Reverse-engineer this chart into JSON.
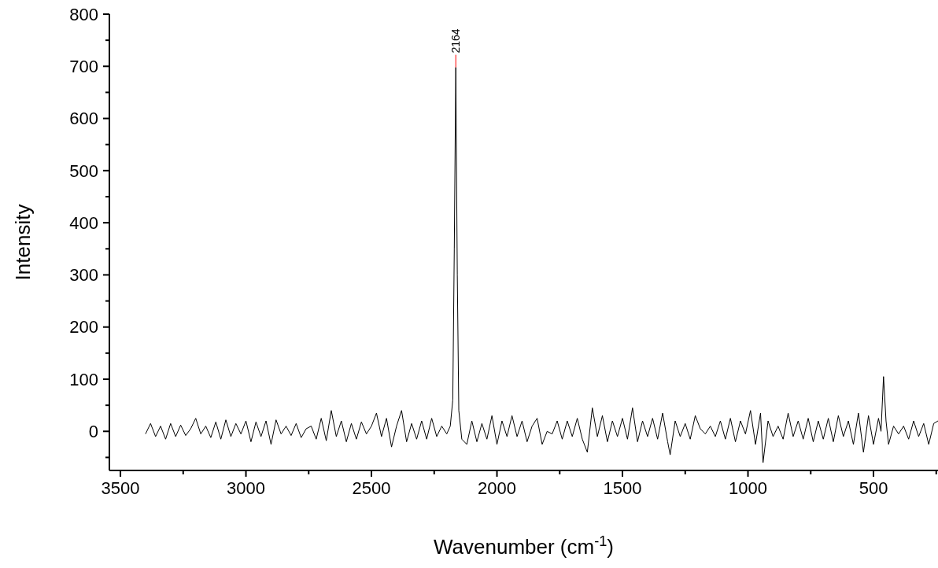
{
  "chart_data": {
    "type": "line",
    "xlabel": "Wavenumber (cm$^{-1}$)",
    "ylabel": "Intensity",
    "x": [
      3400,
      3380,
      3360,
      3340,
      3320,
      3300,
      3280,
      3260,
      3240,
      3220,
      3200,
      3180,
      3160,
      3140,
      3120,
      3100,
      3080,
      3060,
      3040,
      3020,
      3000,
      2980,
      2960,
      2940,
      2920,
      2900,
      2880,
      2860,
      2840,
      2820,
      2800,
      2780,
      2760,
      2740,
      2720,
      2700,
      2680,
      2660,
      2640,
      2620,
      2600,
      2580,
      2560,
      2540,
      2520,
      2500,
      2480,
      2460,
      2440,
      2420,
      2400,
      2380,
      2360,
      2340,
      2320,
      2300,
      2280,
      2260,
      2240,
      2220,
      2200,
      2186,
      2176,
      2170,
      2164,
      2158,
      2152,
      2140,
      2120,
      2100,
      2080,
      2060,
      2040,
      2020,
      2000,
      1980,
      1960,
      1940,
      1920,
      1900,
      1880,
      1860,
      1840,
      1820,
      1800,
      1780,
      1760,
      1740,
      1720,
      1700,
      1680,
      1660,
      1640,
      1620,
      1600,
      1580,
      1560,
      1540,
      1520,
      1500,
      1480,
      1460,
      1440,
      1420,
      1400,
      1380,
      1360,
      1340,
      1320,
      1310,
      1290,
      1270,
      1250,
      1230,
      1210,
      1190,
      1170,
      1150,
      1130,
      1110,
      1090,
      1070,
      1050,
      1030,
      1010,
      990,
      970,
      950,
      940,
      920,
      900,
      880,
      860,
      840,
      820,
      800,
      780,
      760,
      740,
      720,
      700,
      680,
      660,
      640,
      620,
      600,
      580,
      560,
      540,
      520,
      500,
      480,
      470,
      460,
      450,
      440,
      420,
      400,
      380,
      360,
      340,
      320,
      300,
      280,
      260,
      243
    ],
    "series": [
      {
        "color": "#000000",
        "values": [
          -5,
          15,
          -10,
          10,
          -15,
          15,
          -10,
          12,
          -8,
          5,
          25,
          -5,
          10,
          -12,
          18,
          -15,
          22,
          -10,
          15,
          -5,
          20,
          -20,
          18,
          -10,
          20,
          -25,
          22,
          -5,
          10,
          -8,
          15,
          -12,
          5,
          10,
          -15,
          25,
          -18,
          40,
          -10,
          20,
          -20,
          15,
          -15,
          18,
          -5,
          10,
          35,
          -10,
          25,
          -30,
          10,
          40,
          -20,
          15,
          -15,
          20,
          -15,
          25,
          -10,
          10,
          -5,
          10,
          60,
          350,
          698,
          300,
          40,
          -15,
          -25,
          20,
          -20,
          15,
          -15,
          30,
          -25,
          20,
          -10,
          30,
          -10,
          20,
          -20,
          10,
          25,
          -25,
          0,
          -5,
          20,
          -15,
          20,
          -10,
          25,
          -15,
          -40,
          45,
          -10,
          30,
          -20,
          20,
          -10,
          25,
          -15,
          45,
          -20,
          20,
          -10,
          25,
          -15,
          35,
          -20,
          -45,
          20,
          -10,
          15,
          -15,
          30,
          5,
          -5,
          10,
          -10,
          20,
          -15,
          25,
          -20,
          20,
          -5,
          40,
          -25,
          35,
          -60,
          20,
          -10,
          10,
          -15,
          35,
          -10,
          20,
          -15,
          25,
          -20,
          20,
          -15,
          25,
          -20,
          30,
          -10,
          20,
          -25,
          35,
          -40,
          30,
          -25,
          25,
          0,
          105,
          20,
          -25,
          10,
          -5,
          10,
          -15,
          20,
          -10,
          15,
          -25,
          15,
          20
        ]
      }
    ],
    "xlim": [
      3544,
      243
    ],
    "ylim": [
      -75,
      800
    ],
    "xticks": [
      3500,
      {
        "value": 3250,
        "label": null
      },
      3000,
      {
        "value": 2750,
        "label": null
      },
      2500,
      {
        "value": 2250,
        "label": null
      },
      2000,
      {
        "value": 1750,
        "label": null
      },
      1500,
      {
        "value": 1250,
        "label": null
      },
      1000,
      {
        "value": 750,
        "label": null
      },
      500,
      {
        "value": 250,
        "label": null
      }
    ],
    "yticks": [
      {
        "value": -50,
        "label": null
      },
      0,
      {
        "value": 50,
        "label": null
      },
      100,
      {
        "value": 150,
        "label": null
      },
      200,
      {
        "value": 250,
        "label": null
      },
      300,
      {
        "value": 350,
        "label": null
      },
      400,
      {
        "value": 450,
        "label": null
      },
      500,
      {
        "value": 550,
        "label": null
      },
      600,
      {
        "value": 650,
        "label": null
      },
      700,
      {
        "value": 750,
        "label": null
      },
      800
    ],
    "annotations": [
      {
        "text": "2164",
        "x": 2164,
        "y": 698
      }
    ],
    "grid": false,
    "marker": "none",
    "line_style": "solid"
  }
}
